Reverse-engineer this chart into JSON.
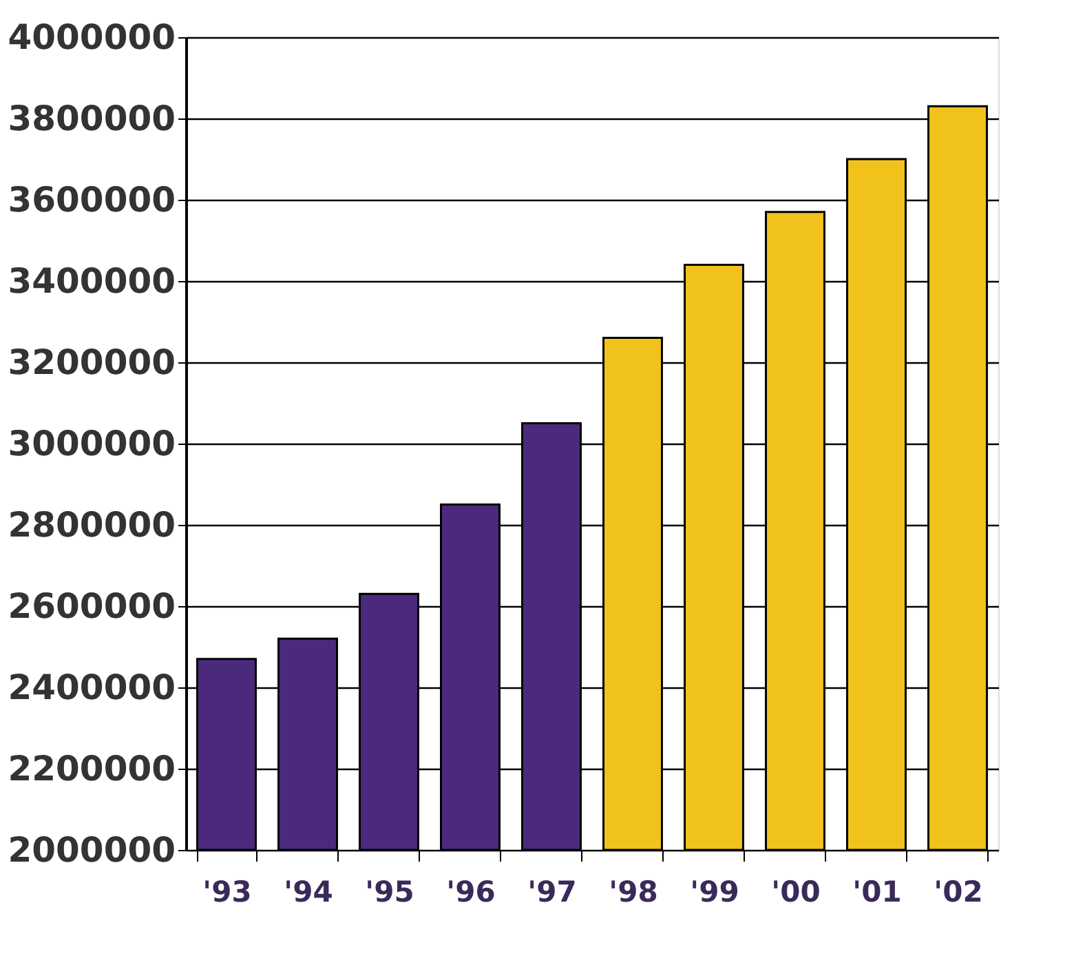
{
  "chart_data": {
    "type": "bar",
    "categories": [
      "'93",
      "'94",
      "'95",
      "'96",
      "'97",
      "'98",
      "'99",
      "'00",
      "'01",
      "'02"
    ],
    "values": [
      2470000,
      2520000,
      2630000,
      2850000,
      3050000,
      3260000,
      3440000,
      3570000,
      3700000,
      3830000
    ],
    "colors": [
      "#4b2a7e",
      "#4b2a7e",
      "#4b2a7e",
      "#4b2a7e",
      "#4b2a7e",
      "#f2c21c",
      "#f2c21c",
      "#f2c21c",
      "#f2c21c",
      "#f2c21c"
    ],
    "ylim": [
      2000000,
      4000000
    ],
    "yticks": [
      2000000,
      2200000,
      2400000,
      2600000,
      2800000,
      3000000,
      3200000,
      3400000,
      3600000,
      3800000,
      4000000
    ],
    "grid": "y"
  }
}
